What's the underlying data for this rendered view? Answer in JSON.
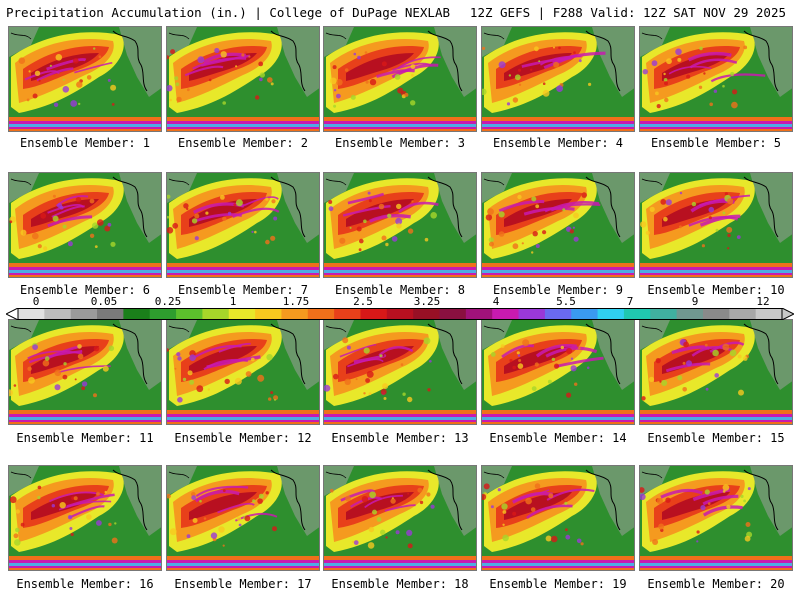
{
  "header": {
    "left": "Precipitation Accumulation (in.) | College of DuPage NEXLAB",
    "right": "12Z GEFS | F288 Valid: 12Z SAT NOV 29 2025"
  },
  "members": [
    {
      "label": "Ensemble Member: 1"
    },
    {
      "label": "Ensemble Member: 2"
    },
    {
      "label": "Ensemble Member: 3"
    },
    {
      "label": "Ensemble Member: 4"
    },
    {
      "label": "Ensemble Member: 5"
    },
    {
      "label": "Ensemble Member: 6"
    },
    {
      "label": "Ensemble Member: 7"
    },
    {
      "label": "Ensemble Member: 8"
    },
    {
      "label": "Ensemble Member: 9"
    },
    {
      "label": "Ensemble Member: 10"
    },
    {
      "label": "Ensemble Member: 11"
    },
    {
      "label": "Ensemble Member: 12"
    },
    {
      "label": "Ensemble Member: 13"
    },
    {
      "label": "Ensemble Member: 14"
    },
    {
      "label": "Ensemble Member: 15"
    },
    {
      "label": "Ensemble Member: 16"
    },
    {
      "label": "Ensemble Member: 17"
    },
    {
      "label": "Ensemble Member: 18"
    },
    {
      "label": "Ensemble Member: 19"
    },
    {
      "label": "Ensemble Member: 20"
    }
  ],
  "colorbar": {
    "tick_labels": [
      "0",
      "0.05",
      "0.25",
      "1",
      "1.75",
      "2.5",
      "3.25",
      "4",
      "5.5",
      "7",
      "9",
      "12"
    ],
    "colors": [
      "#e0e0e0",
      "#bdbdbd",
      "#9a9a9a",
      "#7a7a7a",
      "#1a7f1a",
      "#2e9e2e",
      "#5cc02c",
      "#a6d62a",
      "#e8e82a",
      "#f7c81f",
      "#f59a1f",
      "#f0701a",
      "#e8401a",
      "#d81818",
      "#b81020",
      "#981025",
      "#8a1040",
      "#a0127a",
      "#c81ab0",
      "#9a38d8",
      "#6a6af0",
      "#3a9af0",
      "#30d0f0",
      "#20c8b0",
      "#40b0a0",
      "#709890",
      "#8a8a8a",
      "#a8a8a8",
      "#c8c8c8"
    ]
  }
}
